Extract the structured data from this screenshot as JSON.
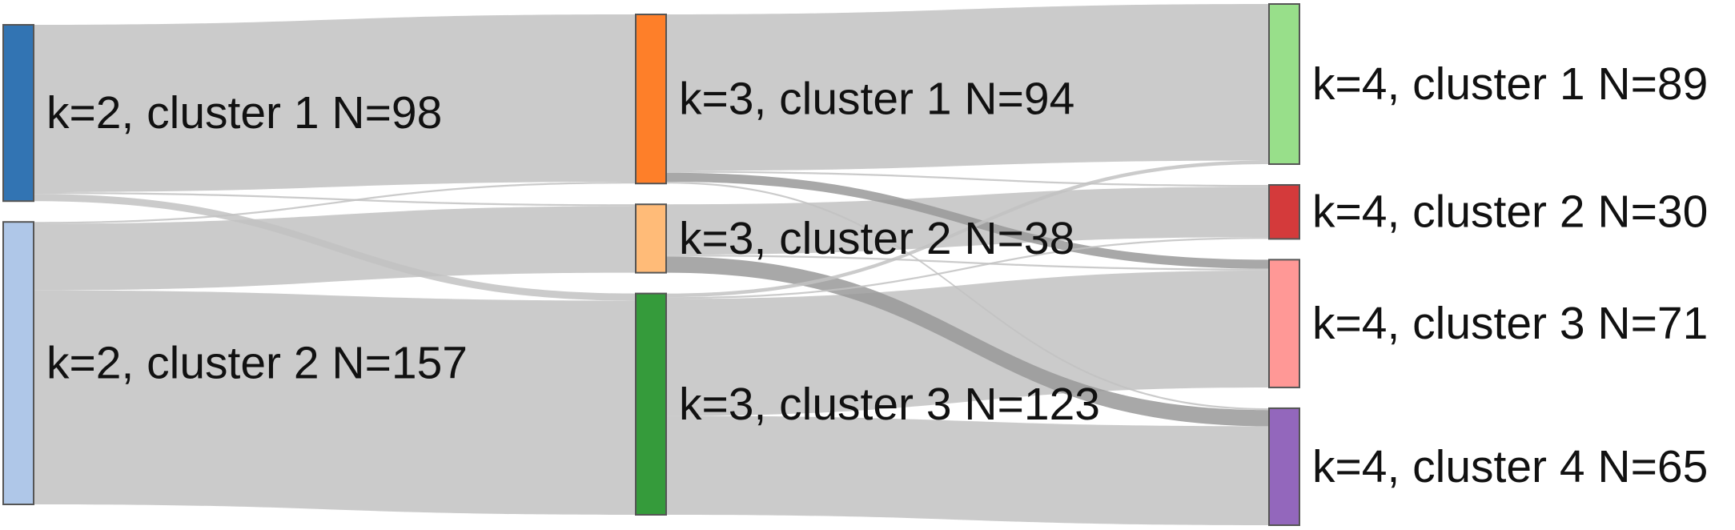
{
  "chart_data": {
    "type": "sankey",
    "title": "",
    "nodes": [
      {
        "id": "k2c1",
        "label": "k=2, cluster 1 N=98",
        "column": 0,
        "value": 98,
        "color": "#3274b3"
      },
      {
        "id": "k2c2",
        "label": "k=2, cluster 2 N=157",
        "column": 0,
        "value": 157,
        "color": "#afc7e8"
      },
      {
        "id": "k3c1",
        "label": "k=3, cluster 1 N=94",
        "column": 1,
        "value": 94,
        "color": "#fe7f29"
      },
      {
        "id": "k3c2",
        "label": "k=3, cluster 2 N=38",
        "column": 1,
        "value": 38,
        "color": "#ffbb78"
      },
      {
        "id": "k3c3",
        "label": "k=3, cluster 3 N=123",
        "column": 1,
        "value": 123,
        "color": "#359b3b"
      },
      {
        "id": "k4c1",
        "label": "k=4, cluster 1 N=89",
        "column": 2,
        "value": 89,
        "color": "#98df8a"
      },
      {
        "id": "k4c2",
        "label": "k=4, cluster 2 N=30",
        "column": 2,
        "value": 30,
        "color": "#d43a3b"
      },
      {
        "id": "k4c3",
        "label": "k=4, cluster 3 N=71",
        "column": 2,
        "value": 71,
        "color": "#ff9896"
      },
      {
        "id": "k4c4",
        "label": "k=4, cluster 4 N=65",
        "column": 2,
        "value": 65,
        "color": "#9367bc"
      }
    ],
    "links": [
      {
        "source": "k2c1",
        "target": "k3c1",
        "value": 93
      },
      {
        "source": "k2c1",
        "target": "k3c2",
        "value": 1
      },
      {
        "source": "k2c1",
        "target": "k3c3",
        "value": 4
      },
      {
        "source": "k2c2",
        "target": "k3c1",
        "value": 1
      },
      {
        "source": "k2c2",
        "target": "k3c2",
        "value": 37
      },
      {
        "source": "k2c2",
        "target": "k3c3",
        "value": 119
      },
      {
        "source": "k3c1",
        "target": "k4c1",
        "value": 87
      },
      {
        "source": "k3c1",
        "target": "k4c2",
        "value": 1
      },
      {
        "source": "k3c1",
        "target": "k4c3",
        "value": 5
      },
      {
        "source": "k3c1",
        "target": "k4c4",
        "value": 1
      },
      {
        "source": "k3c2",
        "target": "k4c2",
        "value": 28
      },
      {
        "source": "k3c2",
        "target": "k4c3",
        "value": 1
      },
      {
        "source": "k3c2",
        "target": "k4c4",
        "value": 9
      },
      {
        "source": "k3c3",
        "target": "k4c1",
        "value": 2
      },
      {
        "source": "k3c3",
        "target": "k4c2",
        "value": 1
      },
      {
        "source": "k3c3",
        "target": "k4c3",
        "value": 65
      },
      {
        "source": "k3c3",
        "target": "k4c4",
        "value": 55
      }
    ]
  }
}
